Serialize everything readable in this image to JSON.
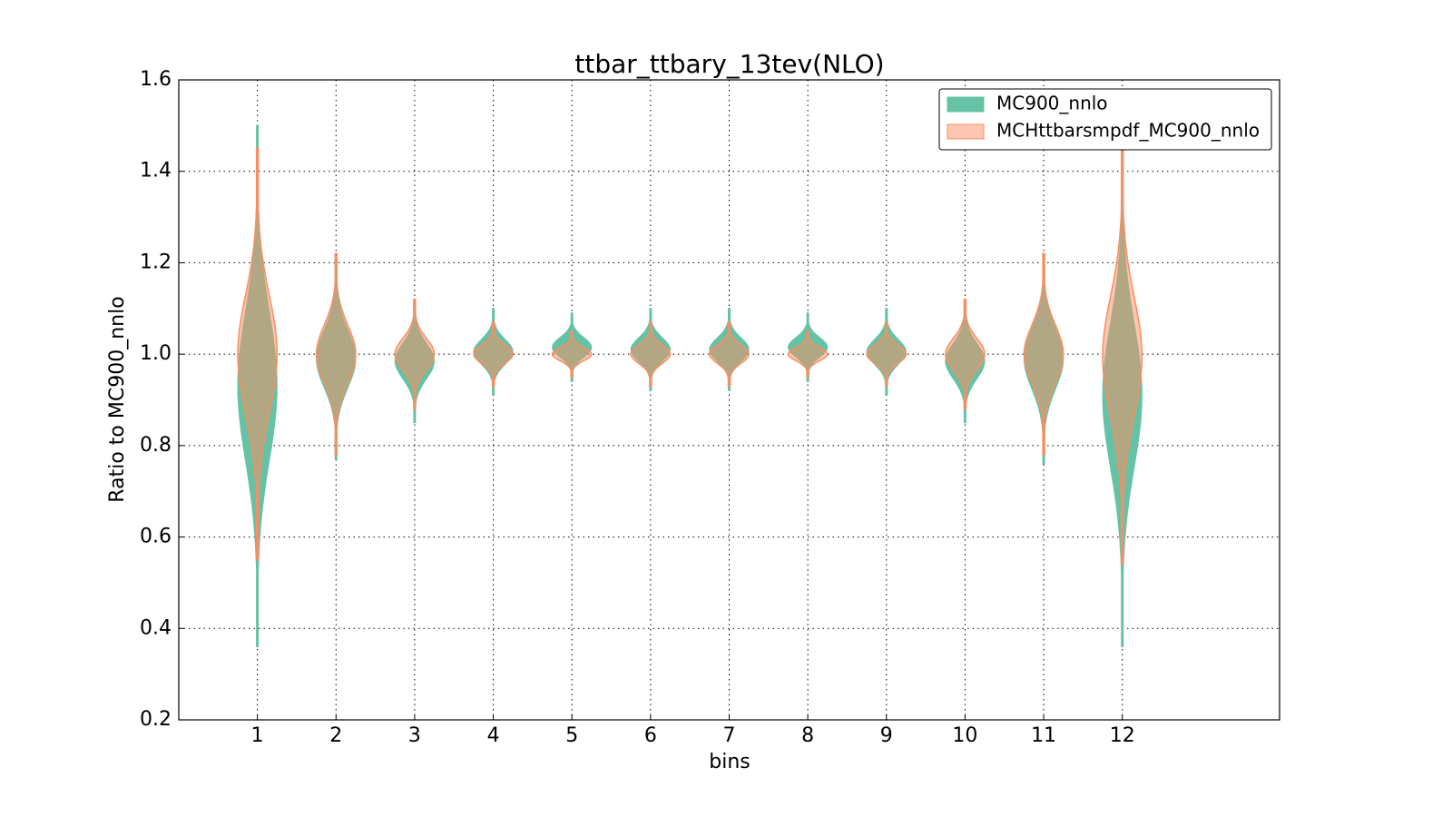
{
  "chart_data": {
    "type": "violin",
    "title": "ttbar_ttbary_13tev(NLO)",
    "xlabel": "bins",
    "ylabel": "Ratio to MC900_nnlo",
    "categories": [
      "1",
      "2",
      "3",
      "4",
      "5",
      "6",
      "7",
      "8",
      "9",
      "10",
      "11",
      "12"
    ],
    "xlim": [
      0,
      14
    ],
    "ylim": [
      0.2,
      1.6
    ],
    "yticks": [
      {
        "value": 0.2,
        "label": "0.2"
      },
      {
        "value": 0.4,
        "label": "0.4"
      },
      {
        "value": 0.6,
        "label": "0.6"
      },
      {
        "value": 0.8,
        "label": "0.8"
      },
      {
        "value": 1.0,
        "label": "1.0"
      },
      {
        "value": 1.2,
        "label": "1.2"
      },
      {
        "value": 1.4,
        "label": "1.4"
      },
      {
        "value": 1.6,
        "label": "1.6"
      }
    ],
    "grid": true,
    "legend": "upper right",
    "width": 0.5,
    "series": [
      {
        "name": "MC900_nnlo",
        "color": "#66c2a5",
        "min": [
          0.36,
          0.77,
          0.85,
          0.91,
          0.94,
          0.92,
          0.92,
          0.94,
          0.91,
          0.85,
          0.76,
          0.36
        ],
        "max": [
          1.5,
          1.21,
          1.12,
          1.1,
          1.09,
          1.1,
          1.1,
          1.09,
          1.1,
          1.12,
          1.22,
          1.46
        ]
      },
      {
        "name": "MCHttbarsmpdf_MC900_nnlo",
        "color": "#fc8d62",
        "min": [
          0.55,
          0.78,
          0.88,
          0.93,
          0.95,
          0.93,
          0.93,
          0.95,
          0.93,
          0.88,
          0.78,
          0.54
        ],
        "max": [
          1.45,
          1.22,
          1.12,
          1.07,
          1.05,
          1.07,
          1.07,
          1.05,
          1.07,
          1.12,
          1.22,
          1.45
        ]
      }
    ]
  }
}
